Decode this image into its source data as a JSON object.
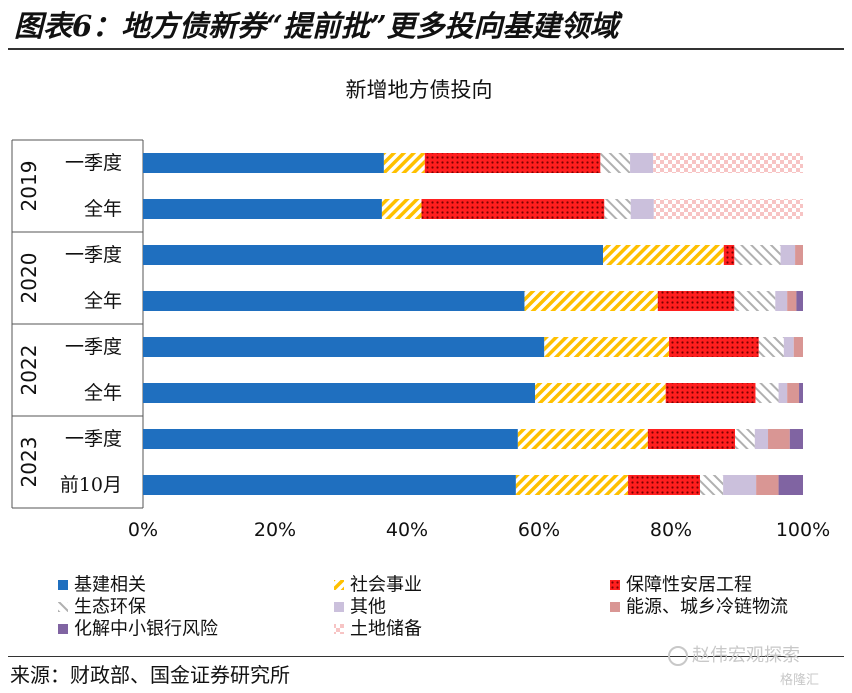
{
  "figure": {
    "title": "图表6：地方债新券“提前批”更多投向基建领域",
    "source": "来源：财政部、国金证券研究所",
    "watermark": "赵伟宏观探索",
    "watermark_sub": "格隆汇"
  },
  "chart_data": {
    "type": "bar",
    "orientation": "horizontal",
    "stacked": true,
    "percent": true,
    "title": "新增地方债投向",
    "xlim": [
      0,
      100
    ],
    "x_ticks": [
      "0%",
      "20%",
      "40%",
      "60%",
      "80%",
      "100%"
    ],
    "grid": false,
    "legend_position": "bottom",
    "groups": [
      {
        "label": "2019",
        "rows": [
          0,
          1
        ]
      },
      {
        "label": "2020",
        "rows": [
          2,
          3
        ]
      },
      {
        "label": "2022",
        "rows": [
          4,
          5
        ]
      },
      {
        "label": "2023",
        "rows": [
          6,
          7
        ]
      }
    ],
    "categories": [
      "一季度",
      "全年",
      "一季度",
      "全年",
      "一季度",
      "全年",
      "一季度",
      "前10月"
    ],
    "series": [
      {
        "name": "基建相关",
        "color": "#1f6fbf",
        "pattern": "solid",
        "values": [
          36.5,
          36.2,
          69.7,
          57.8,
          60.8,
          59.4,
          56.8,
          56.5
        ]
      },
      {
        "name": "社会事业",
        "color": "#ffc000",
        "pattern": "diagonal",
        "values": [
          6.2,
          6.0,
          18.3,
          20.2,
          18.9,
          19.8,
          19.7,
          17.0
        ]
      },
      {
        "name": "保障性安居工程",
        "color": "#ff1f1f",
        "pattern": "dots",
        "values": [
          26.6,
          27.7,
          1.6,
          11.6,
          13.6,
          13.6,
          13.2,
          10.9
        ]
      },
      {
        "name": "生态环保",
        "color": "#c0c0c0",
        "pattern": "diagonal-rev",
        "values": [
          4.5,
          4.0,
          7.0,
          6.2,
          3.8,
          3.5,
          3.0,
          3.5
        ]
      },
      {
        "name": "其他",
        "color": "#cbc0dc",
        "pattern": "solid",
        "values": [
          3.5,
          3.5,
          2.2,
          1.8,
          1.5,
          1.3,
          2.0,
          5.0
        ]
      },
      {
        "name": "能源、城乡冷链物流",
        "color": "#d99694",
        "pattern": "solid",
        "values": [
          0,
          0,
          1.2,
          1.4,
          1.4,
          1.8,
          3.3,
          3.4
        ]
      },
      {
        "name": "化解中小银行风险",
        "color": "#8064a2",
        "pattern": "solid",
        "values": [
          0,
          0,
          0,
          1.0,
          0,
          0.6,
          2.0,
          3.7
        ]
      },
      {
        "name": "土地储备",
        "color": "#f2b3b3",
        "pattern": "checker",
        "values": [
          22.7,
          22.6,
          0,
          0,
          0,
          0,
          0,
          0
        ]
      }
    ]
  }
}
